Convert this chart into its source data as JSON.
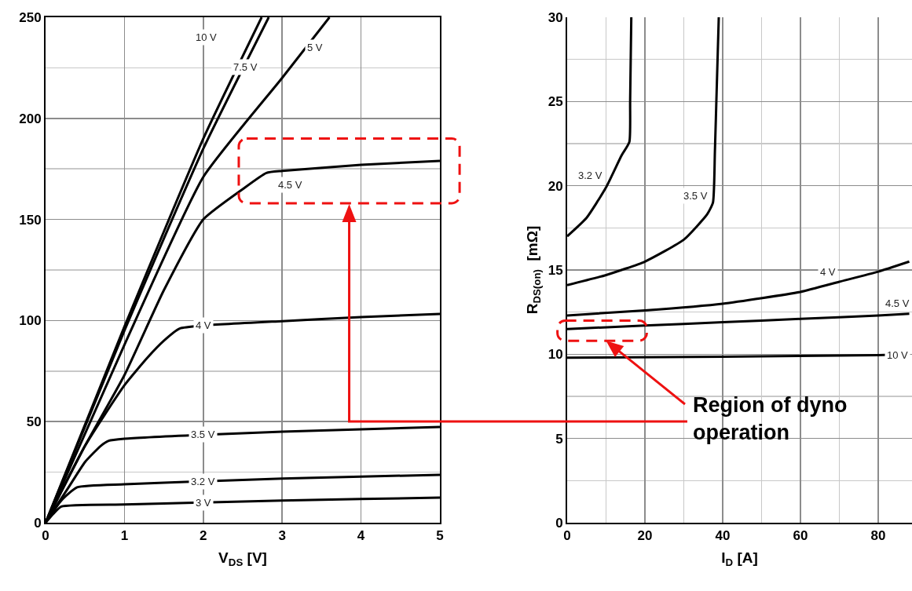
{
  "chart_data": [
    {
      "type": "line",
      "xlabel": "V$_{DS}$ [V]",
      "xlim": [
        0,
        5
      ],
      "xticks": [
        0,
        1,
        2,
        3,
        4,
        5
      ],
      "ylim": [
        0,
        250
      ],
      "yticks": [
        0,
        50,
        100,
        150,
        200,
        250
      ],
      "grid": true,
      "legend": false,
      "marker": "none",
      "line_style": "solid",
      "series": [
        {
          "name": "10 V",
          "color": "#000000",
          "x": [
            0,
            1,
            2,
            2.74
          ],
          "values": [
            0,
            97,
            190,
            250
          ]
        },
        {
          "name": "7.5 V",
          "color": "#000000",
          "x": [
            0,
            1,
            2,
            2.83
          ],
          "values": [
            0,
            95,
            185,
            250
          ]
        },
        {
          "name": "5 V",
          "color": "#000000",
          "x": [
            0,
            1,
            2,
            3,
            3.6
          ],
          "values": [
            0,
            88,
            171,
            220,
            250
          ]
        },
        {
          "name": "4.5 V",
          "color": "#000000",
          "x": [
            0,
            0.5,
            1,
            1.5,
            2,
            2.5,
            2.8,
            3,
            4,
            5
          ],
          "values": [
            0,
            38,
            73,
            115,
            150,
            165,
            173,
            174,
            177,
            179
          ]
        },
        {
          "name": "4 V",
          "color": "#000000",
          "x": [
            0,
            0.5,
            1,
            1.3,
            1.5,
            1.7,
            2,
            3,
            4,
            5
          ],
          "values": [
            0,
            38,
            68,
            82,
            90,
            96,
            97.5,
            99.7,
            101.7,
            103.3
          ]
        },
        {
          "name": "3.5 V",
          "color": "#000000",
          "x": [
            0,
            0.3,
            0.5,
            0.7,
            0.8,
            1,
            2,
            3,
            4,
            5
          ],
          "values": [
            0,
            18,
            30,
            38,
            40.5,
            41.5,
            43.5,
            45,
            46.2,
            47.4
          ]
        },
        {
          "name": "3.2 V",
          "color": "#000000",
          "x": [
            0,
            0.2,
            0.4,
            1,
            2,
            3,
            4,
            5
          ],
          "values": [
            0,
            11,
            17.5,
            19,
            20.5,
            21.8,
            22.8,
            23.7
          ]
        },
        {
          "name": "3 V",
          "color": "#000000",
          "x": [
            0,
            0.1,
            0.2,
            1,
            2,
            3,
            4,
            5
          ],
          "values": [
            0,
            4.5,
            8,
            9,
            10,
            11,
            11.7,
            12.4
          ]
        }
      ]
    },
    {
      "type": "line",
      "xlabel": "I$_{D}$ [A]",
      "ylabel": "R$_{DS(on)}$  [mΩ]",
      "xlim": [
        0,
        88.7
      ],
      "xticks": [
        0,
        20,
        40,
        60,
        80
      ],
      "ylim": [
        0,
        30
      ],
      "yticks": [
        0,
        5,
        10,
        15,
        20,
        25,
        30
      ],
      "grid": true,
      "legend": false,
      "marker": "none",
      "line_style": "solid",
      "annotations": [
        "Region of dyno\noperation"
      ],
      "series": [
        {
          "name": "3.2 V",
          "color": "#000000",
          "x": [
            0,
            5,
            10,
            14,
            16,
            16.2,
            16.5
          ],
          "values": [
            17,
            18.1,
            19.9,
            21.8,
            22.6,
            25,
            30
          ]
        },
        {
          "name": "3.5 V",
          "color": "#000000",
          "x": [
            0,
            10,
            20,
            30,
            36,
            37.5,
            38,
            38.5,
            39
          ],
          "values": [
            14.1,
            14.7,
            15.5,
            16.8,
            18.3,
            19,
            22,
            26,
            30
          ]
        },
        {
          "name": "4 V",
          "color": "#000000",
          "x": [
            0,
            20,
            40,
            60,
            70,
            80,
            88
          ],
          "values": [
            12.3,
            12.6,
            13,
            13.7,
            14.3,
            14.9,
            15.5
          ]
        },
        {
          "name": "4.5 V",
          "color": "#000000",
          "x": [
            0,
            20,
            40,
            60,
            80,
            88
          ],
          "values": [
            11.5,
            11.7,
            11.9,
            12.1,
            12.3,
            12.4
          ]
        },
        {
          "name": "10 V",
          "color": "#000000",
          "x": [
            0,
            40,
            80,
            88
          ],
          "values": [
            9.8,
            9.85,
            9.95,
            10
          ]
        }
      ]
    }
  ]
}
